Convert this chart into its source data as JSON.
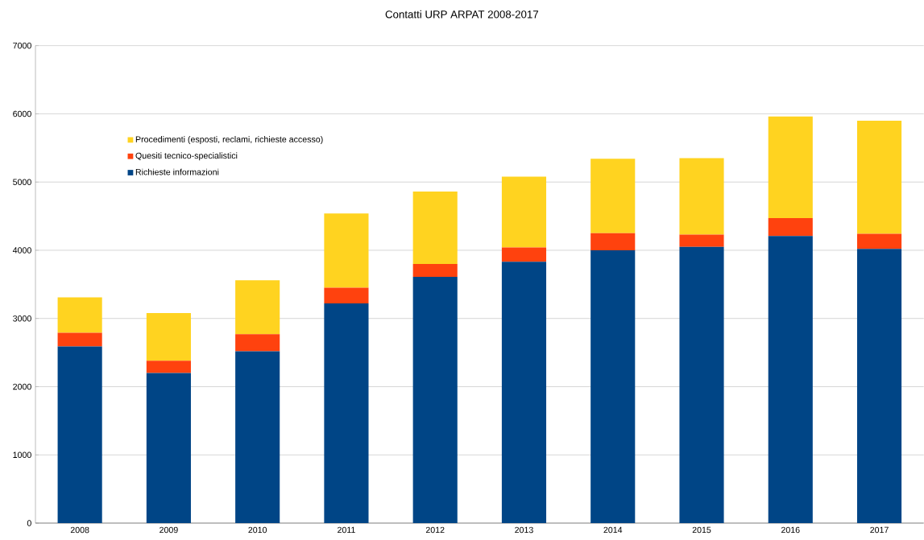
{
  "chart_data": {
    "type": "bar",
    "title": "Contatti URP ARPAT 2008-2017",
    "categories": [
      "2008",
      "2009",
      "2010",
      "2011",
      "2012",
      "2013",
      "2014",
      "2015",
      "2016",
      "2017"
    ],
    "stacked": true,
    "series": [
      {
        "name": "Richieste informazioni",
        "color": "#004586",
        "values": [
          2590,
          2200,
          2520,
          3220,
          3610,
          3830,
          4000,
          4050,
          4210,
          4020
        ]
      },
      {
        "name": "Quesiti tecnico-specialistici",
        "color": "#ff420e",
        "values": [
          200,
          180,
          250,
          230,
          190,
          210,
          250,
          180,
          260,
          220
        ]
      },
      {
        "name": "Procedimenti (esposti, reclami, richieste accesso)",
        "color": "#ffd320",
        "values": [
          520,
          700,
          790,
          1090,
          1060,
          1040,
          1090,
          1120,
          1490,
          1660
        ]
      }
    ],
    "ylim": [
      0,
      7000
    ],
    "yticks": [
      0,
      1000,
      2000,
      3000,
      4000,
      5000,
      6000,
      7000
    ],
    "grid": "y",
    "legend": "top left"
  }
}
